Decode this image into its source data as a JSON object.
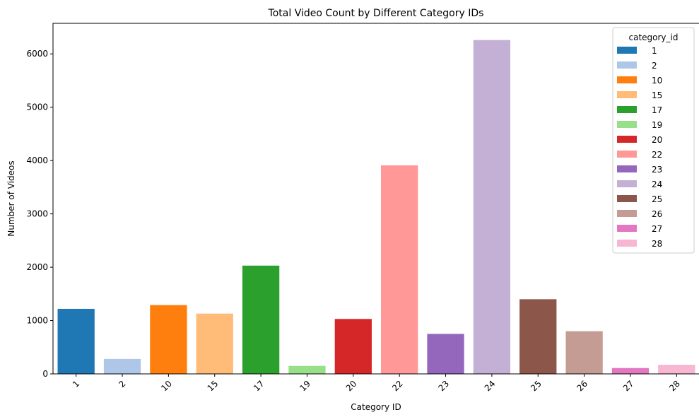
{
  "chart_data": {
    "type": "bar",
    "title": "Total Video Count by Different Category IDs",
    "xlabel": "Category ID",
    "ylabel": "Number of Videos",
    "categories": [
      "1",
      "2",
      "10",
      "15",
      "17",
      "19",
      "20",
      "22",
      "23",
      "24",
      "25",
      "26",
      "27",
      "28"
    ],
    "values": [
      1220,
      280,
      1290,
      1130,
      2030,
      150,
      1030,
      3910,
      750,
      6260,
      1400,
      800,
      110,
      170
    ],
    "colors": [
      "#1f77b4",
      "#aec7e8",
      "#ff7f0e",
      "#ffbb78",
      "#2ca02c",
      "#98df8a",
      "#d62728",
      "#ff9896",
      "#9467bd",
      "#c5b0d5",
      "#8c564b",
      "#c49c94",
      "#e377c2",
      "#f7b6d2"
    ],
    "ylim": [
      0,
      6573
    ],
    "yticks": [
      0,
      1000,
      2000,
      3000,
      4000,
      5000,
      6000
    ],
    "grid": false,
    "legend": {
      "title": "category_id",
      "placement": "top-right",
      "entries": [
        "1",
        "2",
        "10",
        "15",
        "17",
        "19",
        "20",
        "22",
        "23",
        "24",
        "25",
        "26",
        "27",
        "28"
      ]
    }
  }
}
